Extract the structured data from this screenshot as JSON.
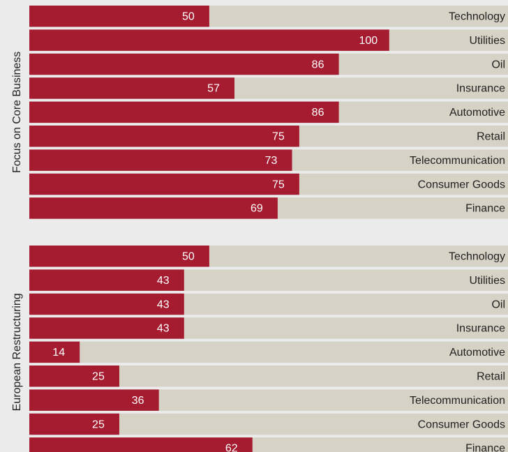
{
  "chart_data": [
    {
      "type": "bar",
      "ylabel": "Focus on Core Business",
      "categories": [
        "Technology",
        "Utilities",
        "Oil",
        "Insurance",
        "Automotive",
        "Retail",
        "Telecommunication",
        "Consumer Goods",
        "Finance"
      ],
      "values": [
        50,
        100,
        86,
        57,
        86,
        75,
        73,
        75,
        69
      ],
      "color": "#a51b2f",
      "track_color": "#d6d2c6",
      "xlim": [
        0,
        133
      ]
    },
    {
      "type": "bar",
      "ylabel": "European Restructuring",
      "categories": [
        "Technology",
        "Utilities",
        "Oil",
        "Insurance",
        "Automotive",
        "Retail",
        "Telecommunication",
        "Consumer Goods",
        "Finance"
      ],
      "values": [
        50,
        43,
        43,
        43,
        14,
        25,
        36,
        25,
        62
      ],
      "color": "#a51b2f",
      "track_color": "#d6d2c6",
      "xlim": [
        0,
        133
      ]
    }
  ]
}
